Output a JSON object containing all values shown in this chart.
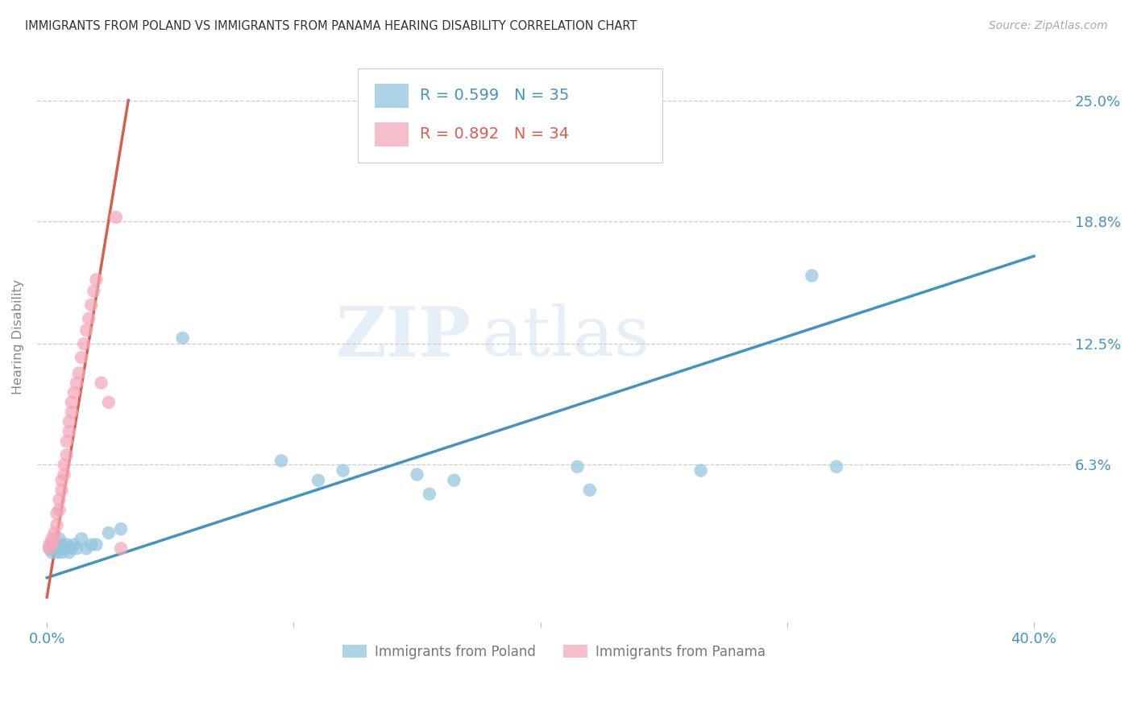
{
  "title": "IMMIGRANTS FROM POLAND VS IMMIGRANTS FROM PANAMA HEARING DISABILITY CORRELATION CHART",
  "source": "Source: ZipAtlas.com",
  "ylabel": "Hearing Disability",
  "xlim": [
    -0.004,
    0.415
  ],
  "ylim": [
    -0.018,
    0.275
  ],
  "ytick_vals": [
    0.063,
    0.125,
    0.188,
    0.25
  ],
  "ytick_labels": [
    "6.3%",
    "12.5%",
    "18.8%",
    "25.0%"
  ],
  "poland_R": 0.599,
  "poland_N": 35,
  "panama_R": 0.892,
  "panama_N": 34,
  "poland_scatter_color": "#92c5de",
  "panama_scatter_color": "#f4a7b9",
  "poland_line_color": "#4393c3",
  "panama_line_color": "#d6604d",
  "legend_poland_label": "Immigrants from Poland",
  "legend_panama_label": "Immigrants from Panama",
  "watermark_zip": "ZIP",
  "watermark_atlas": "atlas",
  "background_color": "#ffffff",
  "poland_x": [
    0.001,
    0.002,
    0.002,
    0.003,
    0.003,
    0.004,
    0.004,
    0.005,
    0.005,
    0.006,
    0.006,
    0.007,
    0.008,
    0.009,
    0.01,
    0.011,
    0.012,
    0.014,
    0.016,
    0.018,
    0.02,
    0.025,
    0.03,
    0.055,
    0.095,
    0.11,
    0.12,
    0.15,
    0.155,
    0.165,
    0.215,
    0.22,
    0.265,
    0.31,
    0.32
  ],
  "poland_y": [
    0.02,
    0.018,
    0.022,
    0.02,
    0.022,
    0.018,
    0.022,
    0.02,
    0.025,
    0.018,
    0.022,
    0.02,
    0.022,
    0.018,
    0.02,
    0.022,
    0.02,
    0.025,
    0.02,
    0.022,
    0.022,
    0.028,
    0.03,
    0.128,
    0.065,
    0.055,
    0.06,
    0.058,
    0.048,
    0.055,
    0.062,
    0.05,
    0.06,
    0.16,
    0.062
  ],
  "panama_x": [
    0.001,
    0.001,
    0.002,
    0.002,
    0.003,
    0.003,
    0.004,
    0.004,
    0.005,
    0.005,
    0.006,
    0.006,
    0.007,
    0.007,
    0.008,
    0.008,
    0.009,
    0.009,
    0.01,
    0.01,
    0.011,
    0.012,
    0.013,
    0.014,
    0.015,
    0.016,
    0.017,
    0.018,
    0.019,
    0.02,
    0.022,
    0.025,
    0.028,
    0.03
  ],
  "panama_y": [
    0.02,
    0.022,
    0.022,
    0.025,
    0.025,
    0.028,
    0.032,
    0.038,
    0.04,
    0.045,
    0.05,
    0.055,
    0.058,
    0.063,
    0.068,
    0.075,
    0.08,
    0.085,
    0.09,
    0.095,
    0.1,
    0.105,
    0.11,
    0.118,
    0.125,
    0.132,
    0.138,
    0.145,
    0.152,
    0.158,
    0.105,
    0.095,
    0.19,
    0.02
  ],
  "poland_trend_x": [
    0.0,
    0.4
  ],
  "poland_trend_y": [
    0.005,
    0.17
  ],
  "panama_trend_x": [
    0.0,
    0.033
  ],
  "panama_trend_y": [
    -0.005,
    0.25
  ]
}
